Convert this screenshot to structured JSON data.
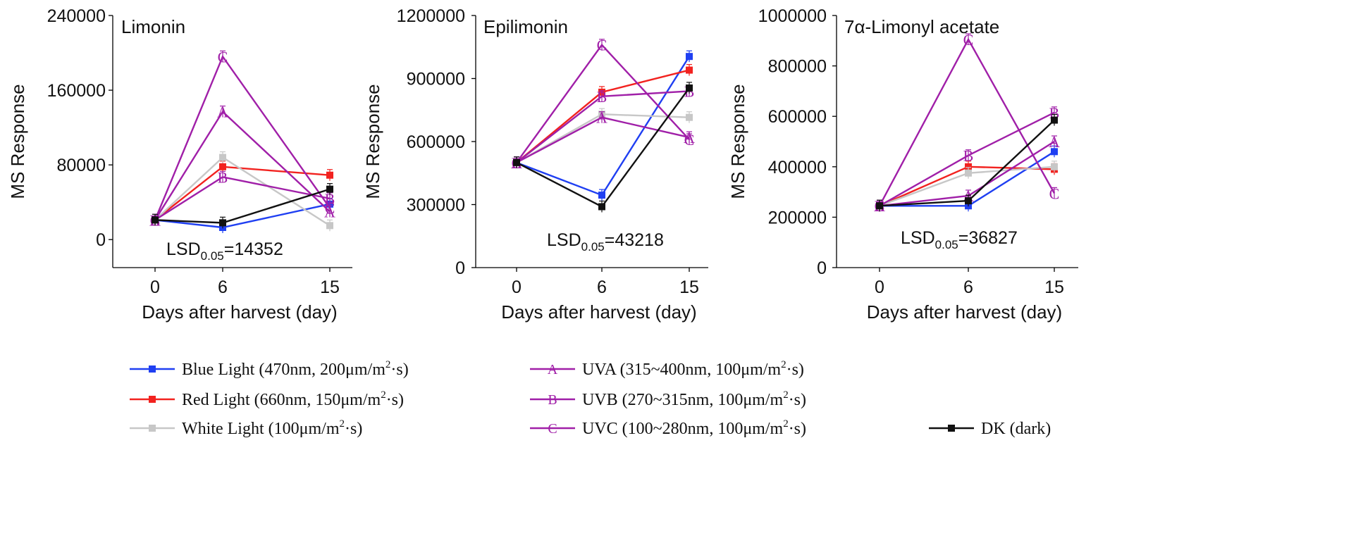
{
  "x_axis_label": "Days after harvest (day)",
  "y_axis_label": "MS Response",
  "colors": {
    "blue": "#1f3ff2",
    "red": "#f2221f",
    "white": "#c7c7c7",
    "uv": "#a01fa8",
    "dark": "#111111"
  },
  "chart_data": [
    {
      "type": "line",
      "title": "Limonin",
      "lsd": {
        "prefix": "LSD",
        "sub": "0.05",
        "value": "=14352"
      },
      "categories": [
        "0",
        "6",
        "15"
      ],
      "xlabel": "Days after harvest (day)",
      "ylabel": "MS Response",
      "ylim": [
        -30000,
        240000
      ],
      "yticks": [
        0,
        80000,
        160000,
        240000
      ],
      "series": [
        {
          "name": "Blue Light",
          "marker": "square",
          "values": [
            21000,
            13000,
            38000
          ]
        },
        {
          "name": "Red Light",
          "marker": "square",
          "values": [
            21000,
            78000,
            69000
          ]
        },
        {
          "name": "White Light",
          "marker": "square",
          "values": [
            21000,
            88000,
            15000
          ]
        },
        {
          "name": "UVA",
          "marker": "A",
          "values": [
            21000,
            137000,
            30000
          ]
        },
        {
          "name": "UVB",
          "marker": "B",
          "values": [
            21000,
            67000,
            44000
          ]
        },
        {
          "name": "UVC",
          "marker": "C",
          "values": [
            21000,
            196000,
            34000
          ]
        },
        {
          "name": "DK",
          "marker": "square",
          "values": [
            21000,
            18000,
            54000
          ]
        }
      ]
    },
    {
      "type": "line",
      "title": "Epilimonin",
      "lsd": {
        "prefix": "LSD",
        "sub": "0.05",
        "value": "=43218"
      },
      "categories": [
        "0",
        "6",
        "15"
      ],
      "xlabel": "Days after harvest (day)",
      "ylabel": "MS Response",
      "ylim": [
        0,
        1200000
      ],
      "yticks": [
        0,
        300000,
        600000,
        900000,
        1200000
      ],
      "series": [
        {
          "name": "Blue Light",
          "marker": "square",
          "values": [
            500000,
            345000,
            1005000
          ]
        },
        {
          "name": "Red Light",
          "marker": "square",
          "values": [
            500000,
            835000,
            940000
          ]
        },
        {
          "name": "White Light",
          "marker": "square",
          "values": [
            500000,
            730000,
            715000
          ]
        },
        {
          "name": "UVA",
          "marker": "A",
          "values": [
            500000,
            715000,
            620000
          ]
        },
        {
          "name": "UVB",
          "marker": "B",
          "values": [
            500000,
            815000,
            840000
          ]
        },
        {
          "name": "UVC",
          "marker": "C",
          "values": [
            500000,
            1060000,
            610000
          ]
        },
        {
          "name": "DK",
          "marker": "square",
          "values": [
            500000,
            290000,
            855000
          ]
        }
      ]
    },
    {
      "type": "line",
      "title": "7α-Limonyl acetate",
      "lsd": {
        "prefix": "LSD",
        "sub": "0.05",
        "value": "=36827"
      },
      "categories": [
        "0",
        "6",
        "15"
      ],
      "xlabel": "Days after harvest (day)",
      "ylabel": "MS Response",
      "ylim": [
        0,
        1000000
      ],
      "yticks": [
        0,
        200000,
        400000,
        600000,
        800000,
        1000000
      ],
      "series": [
        {
          "name": "Blue Light",
          "marker": "square",
          "values": [
            245000,
            245000,
            460000
          ]
        },
        {
          "name": "Red Light",
          "marker": "square",
          "values": [
            245000,
            400000,
            390000
          ]
        },
        {
          "name": "White Light",
          "marker": "square",
          "values": [
            245000,
            375000,
            400000
          ]
        },
        {
          "name": "UVA",
          "marker": "A",
          "values": [
            245000,
            285000,
            500000
          ]
        },
        {
          "name": "UVB",
          "marker": "B",
          "values": [
            245000,
            445000,
            615000
          ]
        },
        {
          "name": "UVC",
          "marker": "C",
          "values": [
            245000,
            905000,
            295000
          ]
        },
        {
          "name": "DK",
          "marker": "square",
          "values": [
            245000,
            265000,
            585000
          ]
        }
      ]
    }
  ],
  "legend": {
    "items": [
      {
        "key": "blue",
        "marker": "square",
        "text": "Blue Light (470nm, 200μm/m",
        "sup": "2",
        "tail": "·s)"
      },
      {
        "key": "red",
        "marker": "square",
        "text": "Red Light (660nm, 150μm/m",
        "sup": "2",
        "tail": "·s)"
      },
      {
        "key": "white",
        "marker": "square",
        "text": "White Light (100μm/m",
        "sup": "2",
        "tail": "·s)"
      },
      {
        "key": "uv",
        "marker": "A",
        "text": "UVA (315~400nm, 100μm/m",
        "sup": "2",
        "tail": "·s)"
      },
      {
        "key": "uv",
        "marker": "B",
        "text": "UVB (270~315nm, 100μm/m",
        "sup": "2",
        "tail": "·s)"
      },
      {
        "key": "uv",
        "marker": "C",
        "text": "UVC (100~280nm, 100μm/m",
        "sup": "2",
        "tail": "·s)"
      },
      {
        "key": "dark",
        "marker": "square",
        "text": "DK (dark)",
        "sup": "",
        "tail": ""
      }
    ]
  }
}
